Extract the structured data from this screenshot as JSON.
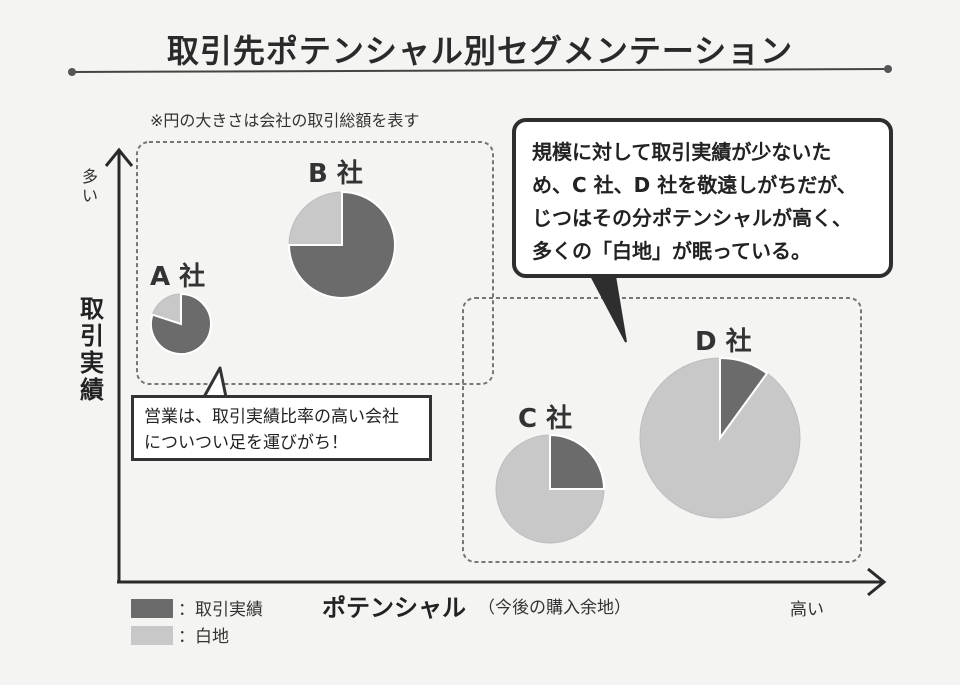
{
  "title": "取引先ポテンシャル別セグメンテーション",
  "note": "※円の大きさは会社の取引総額を表す",
  "y_axis": {
    "label": "取引実績",
    "high": "多い"
  },
  "x_axis": {
    "label": "ポテンシャル",
    "sublabel": "（今後の購入余地）",
    "high": "高い"
  },
  "companies": [
    {
      "label": "A 社",
      "share_actual": 0.8
    },
    {
      "label": "B 社",
      "share_actual": 0.75
    },
    {
      "label": "C 社",
      "share_actual": 0.25
    },
    {
      "label": "D 社",
      "share_actual": 0.1
    }
  ],
  "callout_left": [
    "営業は、取引実績比率の高い会社",
    "についつい足を運びがち！"
  ],
  "callout_right": [
    "規模に対して取引実績が少ないた",
    "め、C 社、D 社を敬遠しがちだが、",
    "じつはその分ポテンシャルが高く、",
    "多くの「白地」が眠っている。"
  ],
  "legend": [
    {
      "label": "：取引実績",
      "color": "#6b6b6b"
    },
    {
      "label": "：白地",
      "color": "#c8c8c8"
    }
  ],
  "colors": {
    "actual": "#6b6b6b",
    "whitespace": "#c8c8c8",
    "line": "#333333"
  }
}
